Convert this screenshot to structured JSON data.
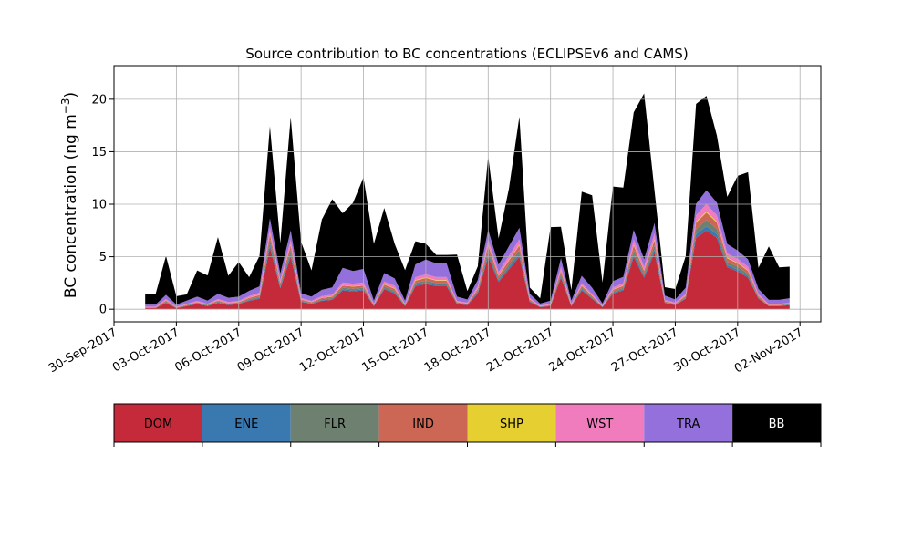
{
  "chart_data": {
    "type": "area",
    "title": "Source contribution to BC concentrations (ECLIPSEv6 and CAMS)",
    "xlabel": "",
    "ylabel": "BC concentration (ng m⁻³)",
    "ylabel_base": "BC concentration (ng m",
    "ylabel_exp": "−3",
    "ylabel_close": ")",
    "stacked": true,
    "grid": true,
    "xlim": [
      "2017-09-30",
      "2017-11-03"
    ],
    "ylim": [
      -1.2,
      23.2
    ],
    "yticks": [
      0,
      5,
      10,
      15,
      20
    ],
    "xticks": [
      "30-Sep-2017",
      "03-Oct-2017",
      "06-Oct-2017",
      "09-Oct-2017",
      "12-Oct-2017",
      "15-Oct-2017",
      "18-Oct-2017",
      "21-Oct-2017",
      "24-Oct-2017",
      "27-Oct-2017",
      "30-Oct-2017",
      "02-Nov-2017"
    ],
    "x": [
      "2017-10-01T12",
      "2017-10-02T00",
      "2017-10-02T12",
      "2017-10-03T00",
      "2017-10-03T12",
      "2017-10-04T00",
      "2017-10-04T12",
      "2017-10-05T00",
      "2017-10-05T12",
      "2017-10-06T00",
      "2017-10-06T12",
      "2017-10-07T00",
      "2017-10-07T12",
      "2017-10-08T00",
      "2017-10-08T12",
      "2017-10-09T00",
      "2017-10-09T12",
      "2017-10-10T00",
      "2017-10-10T12",
      "2017-10-11T00",
      "2017-10-11T12",
      "2017-10-12T00",
      "2017-10-12T12",
      "2017-10-13T00",
      "2017-10-13T12",
      "2017-10-14T00",
      "2017-10-14T12",
      "2017-10-15T00",
      "2017-10-15T12",
      "2017-10-16T00",
      "2017-10-16T12",
      "2017-10-17T00",
      "2017-10-17T12",
      "2017-10-18T00",
      "2017-10-18T12",
      "2017-10-19T00",
      "2017-10-19T12",
      "2017-10-20T00",
      "2017-10-20T12",
      "2017-10-21T00",
      "2017-10-21T12",
      "2017-10-22T00",
      "2017-10-22T12",
      "2017-10-23T00",
      "2017-10-23T12",
      "2017-10-24T00",
      "2017-10-24T12",
      "2017-10-25T00",
      "2017-10-25T12",
      "2017-10-26T00",
      "2017-10-26T12",
      "2017-10-27T00",
      "2017-10-27T12",
      "2017-10-28T00",
      "2017-10-28T12",
      "2017-10-29T00",
      "2017-10-29T12",
      "2017-10-30T00",
      "2017-10-30T12",
      "2017-10-31T00",
      "2017-10-31T12",
      "2017-11-01T00",
      "2017-11-01T12"
    ],
    "series": [
      {
        "name": "DOM",
        "color": "#c52a3a",
        "values": [
          0.1,
          0.1,
          0.6,
          0.1,
          0.3,
          0.5,
          0.3,
          0.6,
          0.4,
          0.5,
          0.8,
          1.0,
          5.9,
          2.0,
          5.0,
          0.7,
          0.5,
          0.8,
          0.9,
          1.8,
          1.7,
          1.8,
          0.3,
          1.9,
          1.5,
          0.3,
          2.2,
          2.4,
          2.2,
          2.2,
          0.5,
          0.4,
          1.5,
          5.0,
          2.6,
          3.8,
          5.0,
          0.7,
          0.2,
          0.3,
          3.0,
          0.3,
          1.8,
          1.0,
          0.2,
          1.5,
          1.8,
          5.0,
          3.0,
          5.4,
          0.6,
          0.4,
          1.0,
          6.8,
          7.5,
          6.8,
          4.0,
          3.6,
          3.0,
          1.0,
          0.3,
          0.3,
          0.4
        ]
      },
      {
        "name": "ENE",
        "color": "#3a78b0",
        "values": [
          0.02,
          0.02,
          0.05,
          0.02,
          0.03,
          0.04,
          0.03,
          0.05,
          0.04,
          0.04,
          0.06,
          0.08,
          0.3,
          0.12,
          0.25,
          0.05,
          0.04,
          0.06,
          0.07,
          0.1,
          0.1,
          0.1,
          0.03,
          0.1,
          0.1,
          0.03,
          0.12,
          0.13,
          0.12,
          0.12,
          0.04,
          0.03,
          0.1,
          0.25,
          0.14,
          0.2,
          0.25,
          0.05,
          0.02,
          0.03,
          0.15,
          0.03,
          0.1,
          0.06,
          0.02,
          0.08,
          0.1,
          0.25,
          0.15,
          0.27,
          0.04,
          0.03,
          0.06,
          0.35,
          0.4,
          0.35,
          0.2,
          0.18,
          0.15,
          0.06,
          0.02,
          0.02,
          0.03
        ]
      },
      {
        "name": "FLR",
        "color": "#6e8170",
        "values": [
          0.03,
          0.03,
          0.08,
          0.03,
          0.05,
          0.06,
          0.05,
          0.08,
          0.06,
          0.06,
          0.1,
          0.12,
          0.45,
          0.18,
          0.38,
          0.08,
          0.06,
          0.1,
          0.1,
          0.15,
          0.15,
          0.15,
          0.05,
          0.15,
          0.15,
          0.05,
          0.18,
          0.2,
          0.18,
          0.18,
          0.06,
          0.05,
          0.15,
          0.38,
          0.2,
          0.3,
          0.38,
          0.08,
          0.03,
          0.05,
          0.22,
          0.05,
          0.15,
          0.1,
          0.03,
          0.12,
          0.15,
          0.38,
          0.22,
          0.4,
          0.06,
          0.05,
          0.1,
          0.5,
          0.6,
          0.5,
          0.3,
          0.27,
          0.22,
          0.1,
          0.03,
          0.03,
          0.05
        ]
      },
      {
        "name": "IND",
        "color": "#cc6655",
        "values": [
          0.03,
          0.03,
          0.1,
          0.03,
          0.05,
          0.08,
          0.05,
          0.1,
          0.07,
          0.08,
          0.12,
          0.15,
          0.5,
          0.2,
          0.45,
          0.1,
          0.08,
          0.12,
          0.13,
          0.2,
          0.2,
          0.2,
          0.05,
          0.2,
          0.2,
          0.05,
          0.22,
          0.25,
          0.22,
          0.22,
          0.08,
          0.06,
          0.18,
          0.45,
          0.25,
          0.35,
          0.45,
          0.1,
          0.03,
          0.05,
          0.28,
          0.05,
          0.18,
          0.12,
          0.03,
          0.15,
          0.18,
          0.45,
          0.28,
          0.5,
          0.08,
          0.06,
          0.12,
          0.6,
          0.7,
          0.6,
          0.35,
          0.32,
          0.28,
          0.12,
          0.05,
          0.05,
          0.06
        ]
      },
      {
        "name": "SHP",
        "color": "#e6cf30",
        "values": [
          0.01,
          0.01,
          0.02,
          0.01,
          0.01,
          0.02,
          0.01,
          0.02,
          0.02,
          0.02,
          0.02,
          0.03,
          0.08,
          0.04,
          0.07,
          0.02,
          0.02,
          0.02,
          0.03,
          0.04,
          0.04,
          0.04,
          0.01,
          0.04,
          0.04,
          0.01,
          0.05,
          0.05,
          0.05,
          0.05,
          0.02,
          0.01,
          0.04,
          0.07,
          0.05,
          0.06,
          0.07,
          0.02,
          0.01,
          0.01,
          0.05,
          0.01,
          0.04,
          0.02,
          0.01,
          0.03,
          0.04,
          0.07,
          0.05,
          0.08,
          0.02,
          0.01,
          0.02,
          0.1,
          0.12,
          0.1,
          0.06,
          0.05,
          0.05,
          0.02,
          0.01,
          0.01,
          0.01
        ]
      },
      {
        "name": "WST",
        "color": "#f07cbd",
        "values": [
          0.05,
          0.05,
          0.12,
          0.05,
          0.08,
          0.1,
          0.08,
          0.12,
          0.1,
          0.1,
          0.15,
          0.2,
          0.5,
          0.25,
          0.45,
          0.12,
          0.1,
          0.15,
          0.15,
          0.25,
          0.25,
          0.25,
          0.08,
          0.25,
          0.25,
          0.08,
          0.3,
          0.3,
          0.3,
          0.3,
          0.1,
          0.08,
          0.22,
          0.5,
          0.3,
          0.4,
          0.5,
          0.12,
          0.05,
          0.08,
          0.35,
          0.08,
          0.22,
          0.15,
          0.05,
          0.2,
          0.22,
          0.5,
          0.35,
          0.55,
          0.1,
          0.08,
          0.15,
          0.6,
          0.7,
          0.6,
          0.4,
          0.38,
          0.35,
          0.15,
          0.08,
          0.08,
          0.1
        ]
      },
      {
        "name": "TRA",
        "color": "#9370db",
        "values": [
          0.2,
          0.2,
          0.4,
          0.2,
          0.3,
          0.4,
          0.3,
          0.5,
          0.4,
          0.4,
          0.5,
          0.6,
          0.9,
          0.6,
          0.9,
          0.45,
          0.4,
          0.6,
          0.7,
          1.4,
          1.2,
          1.3,
          0.3,
          0.8,
          0.7,
          0.3,
          1.2,
          1.4,
          1.3,
          1.3,
          0.4,
          0.3,
          0.6,
          0.9,
          0.7,
          0.9,
          1.1,
          0.4,
          0.2,
          0.3,
          0.8,
          0.3,
          0.7,
          0.6,
          0.2,
          0.6,
          0.6,
          0.9,
          0.7,
          1.0,
          0.4,
          0.3,
          0.6,
          1.1,
          1.3,
          1.2,
          0.9,
          0.8,
          0.7,
          0.5,
          0.4,
          0.4,
          0.4
        ]
      },
      {
        "name": "BB",
        "color": "#000000",
        "values": [
          1.0,
          1.0,
          3.7,
          0.8,
          0.6,
          2.5,
          2.4,
          5.4,
          2.1,
          3.3,
          1.3,
          2.9,
          8.8,
          2.9,
          10.8,
          4.9,
          2.5,
          6.7,
          8.4,
          5.2,
          6.5,
          8.7,
          5.4,
          6.2,
          3.3,
          2.9,
          2.2,
          1.5,
          0.8,
          0.8,
          4.0,
          0.8,
          1.3,
          7.0,
          2.5,
          5.5,
          10.6,
          0.6,
          0.5,
          7.0,
          3.0,
          1.0,
          8.0,
          8.8,
          2.0,
          9.0,
          8.5,
          11.2,
          15.8,
          3.1,
          0.8,
          1.0,
          3.0,
          9.5,
          9.0,
          6.4,
          4.5,
          7.1,
          8.3,
          2.0,
          5.1,
          3.1,
          3.0
        ]
      }
    ],
    "legend": {
      "placement": "bottom",
      "entries": [
        "DOM",
        "ENE",
        "FLR",
        "IND",
        "SHP",
        "WST",
        "TRA",
        "BB"
      ]
    }
  }
}
